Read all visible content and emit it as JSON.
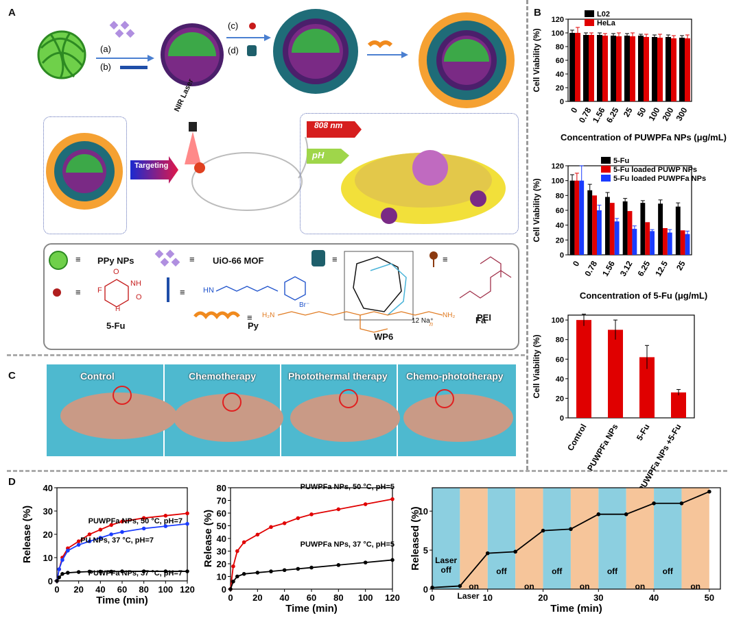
{
  "panels": {
    "A": "A",
    "B": "B",
    "C": "C",
    "D": "D"
  },
  "schematic": {
    "steps": [
      "(a)",
      "(b)",
      "(c)",
      "(d)"
    ],
    "targeting": "Targeting",
    "nir_laser": "NIR Laser",
    "wavelength": "808 nm",
    "ph": "pH"
  },
  "legend": {
    "ppy": "PPy NPs",
    "mof": "UiO-66 MOF",
    "wp6": "WP6",
    "fa": "Fa",
    "fu": "5-Fu",
    "py": "Py",
    "pei": "PEI",
    "na": "12 Na⁺",
    "equiv": "≡",
    "py_hn": "HN",
    "py_br": "Br⁻",
    "fu_f": "F",
    "fu_o": "O",
    "fu_nh": "NH",
    "fu_h": "H",
    "pei_nh2": "NH₂",
    "pei_h2n": "H₂N",
    "pei_n": "n"
  },
  "photos": [
    "Control",
    "Chemotherapy",
    "Photothermal therapy",
    "Chemo-phototherapy"
  ],
  "colors": {
    "red": "#e00000",
    "blue": "#1a3cff",
    "black": "#000000",
    "orange": "#f6c59a",
    "cyan": "#8ccfe0"
  },
  "chart_data": [
    {
      "type": "bar",
      "id": "B1",
      "ylabel": "Cell Viability (%)",
      "xlabel": "Concentration of PUWPFa NPs (μg/mL)",
      "categories": [
        "0",
        "0.78",
        "1.56",
        "6.25",
        "25",
        "50",
        "100",
        "200",
        "300"
      ],
      "ylim": [
        0,
        120
      ],
      "yticks": [
        0,
        20,
        40,
        60,
        80,
        100,
        120
      ],
      "series": [
        {
          "name": "L02",
          "color": "#000000",
          "values": [
            100,
            97,
            97,
            96,
            96,
            96,
            94,
            94,
            93
          ],
          "err": [
            4,
            3,
            3,
            3,
            3,
            2,
            3,
            3,
            3
          ]
        },
        {
          "name": "HeLa",
          "color": "#e00000",
          "values": [
            100,
            97,
            96,
            95,
            95,
            94,
            93,
            92,
            92
          ],
          "err": [
            8,
            3,
            3,
            5,
            5,
            4,
            5,
            4,
            5
          ]
        }
      ]
    },
    {
      "type": "bar",
      "id": "B2",
      "ylabel": "Cell Viability (%)",
      "xlabel": "Concentration of 5-Fu (μg/mL)",
      "categories": [
        "0",
        "0.78",
        "1.56",
        "3.12",
        "6.25",
        "12.5",
        "25"
      ],
      "ylim": [
        0,
        120
      ],
      "yticks": [
        0,
        20,
        40,
        60,
        80,
        100,
        120
      ],
      "series": [
        {
          "name": "5-Fu",
          "color": "#000000",
          "values": [
            100,
            87,
            78,
            72,
            70,
            69,
            65
          ],
          "err": [
            8,
            8,
            6,
            4,
            3,
            5,
            5
          ]
        },
        {
          "name": "5-Fu loaded PUWP NPs",
          "color": "#e00000",
          "values": [
            100,
            80,
            70,
            59,
            44,
            36,
            33
          ],
          "err": [
            10,
            0,
            0,
            0,
            0,
            0,
            0
          ]
        },
        {
          "name": "5-Fu loaded PUWPFa NPs",
          "color": "#1a3cff",
          "values": [
            100,
            60,
            45,
            35,
            32,
            30,
            28
          ],
          "err": [
            20,
            7,
            4,
            4,
            2,
            4,
            4
          ]
        }
      ]
    },
    {
      "type": "bar",
      "id": "B3",
      "ylabel": "Cell Viability (%)",
      "categories": [
        "Control",
        "PUWPFa NPs",
        "5-Fu",
        "PUWPFa NPs +5-Fu"
      ],
      "ylim": [
        0,
        105
      ],
      "yticks": [
        0,
        20,
        40,
        60,
        80,
        100
      ],
      "series": [
        {
          "name": "viability",
          "color": "#e00000",
          "values": [
            100,
            90,
            62,
            26
          ],
          "err": [
            6,
            10,
            12,
            3
          ]
        }
      ]
    },
    {
      "type": "line",
      "id": "D1",
      "ylabel": "Release (%)",
      "xlabel": "Time (min)",
      "xlim": [
        0,
        120
      ],
      "ylim": [
        0,
        40
      ],
      "xticks": [
        0,
        20,
        40,
        60,
        80,
        100,
        120
      ],
      "yticks": [
        0,
        10,
        20,
        30,
        40
      ],
      "series": [
        {
          "name": "PUWPFa NPs, 50 °C, pH=7",
          "color": "#e00000",
          "x": [
            0,
            2,
            5,
            10,
            20,
            30,
            40,
            50,
            60,
            80,
            100,
            120
          ],
          "y": [
            0,
            5,
            10,
            14,
            17,
            20,
            22,
            24,
            25.5,
            27,
            28,
            29
          ]
        },
        {
          "name": "PU NPs, 37 °C, pH=7",
          "color": "#1a3cff",
          "x": [
            0,
            2,
            5,
            10,
            20,
            30,
            40,
            50,
            60,
            80,
            100,
            120
          ],
          "y": [
            0,
            5,
            9,
            13,
            15.5,
            17,
            18.5,
            20,
            21,
            22.5,
            23.5,
            24.5
          ]
        },
        {
          "name": "PUWPFa NPs, 37 °C, pH=7",
          "color": "#000000",
          "x": [
            0,
            2,
            5,
            10,
            20,
            30,
            40,
            50,
            60,
            80,
            100,
            120
          ],
          "y": [
            0,
            1.5,
            3,
            3.5,
            3.8,
            4,
            4,
            4,
            4.1,
            4.1,
            4.1,
            4.1
          ]
        }
      ]
    },
    {
      "type": "line",
      "id": "D2",
      "ylabel": "Release (%)",
      "xlabel": "Time (min)",
      "xlim": [
        0,
        120
      ],
      "ylim": [
        0,
        80
      ],
      "xticks": [
        0,
        20,
        40,
        60,
        80,
        100,
        120
      ],
      "yticks": [
        0,
        10,
        20,
        30,
        40,
        50,
        60,
        70,
        80
      ],
      "series": [
        {
          "name": "PUWPFa NPs, 50 °C, pH=5",
          "color": "#e00000",
          "x": [
            0,
            2,
            5,
            10,
            20,
            30,
            40,
            50,
            60,
            80,
            100,
            120
          ],
          "y": [
            0,
            18,
            30,
            37,
            43,
            49,
            52,
            56,
            59,
            63,
            67,
            71
          ]
        },
        {
          "name": "PUWPFa NPs, 37 °C, pH=5",
          "color": "#000000",
          "x": [
            0,
            2,
            5,
            10,
            20,
            30,
            40,
            50,
            60,
            80,
            100,
            120
          ],
          "y": [
            0,
            6,
            10,
            12,
            13,
            14,
            15,
            16,
            17,
            19,
            21,
            23
          ]
        }
      ]
    },
    {
      "type": "line",
      "id": "D3",
      "ylabel": "Released (%)",
      "xlabel": "Time (min)",
      "xlim": [
        0,
        52
      ],
      "ylim": [
        0,
        13
      ],
      "xticks": [
        0,
        10,
        20,
        30,
        40,
        50
      ],
      "yticks": [
        0,
        5,
        10
      ],
      "intervals": [
        "Laser off",
        "on Laser",
        "off",
        "on",
        "off",
        "on",
        "off",
        "on",
        "off",
        "on"
      ],
      "series": [
        {
          "name": "release",
          "color": "#000000",
          "x": [
            0,
            5,
            10,
            15,
            20,
            25,
            30,
            35,
            40,
            45,
            50
          ],
          "y": [
            0.2,
            0.4,
            4.6,
            4.8,
            7.5,
            7.7,
            9.6,
            9.6,
            11,
            11,
            12.5
          ]
        }
      ]
    }
  ]
}
